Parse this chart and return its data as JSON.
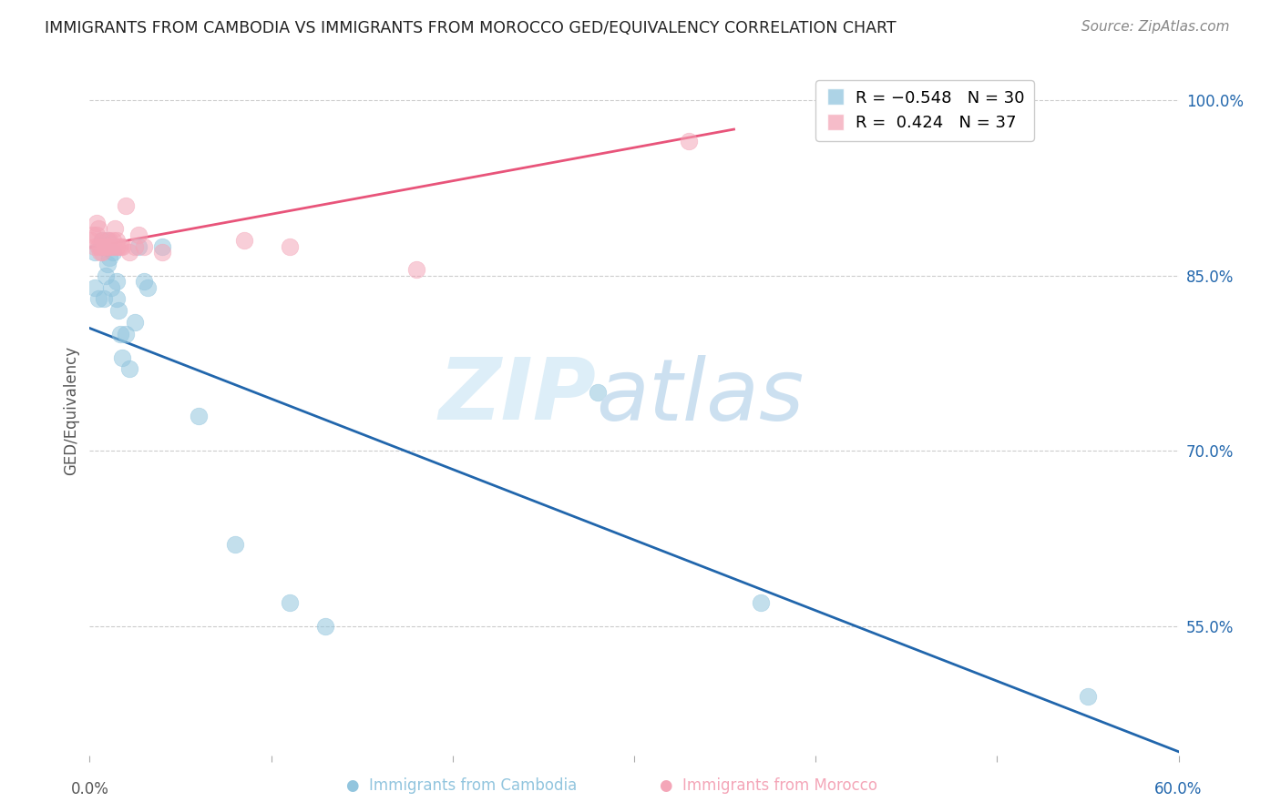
{
  "title": "IMMIGRANTS FROM CAMBODIA VS IMMIGRANTS FROM MOROCCO GED/EQUIVALENCY CORRELATION CHART",
  "source": "Source: ZipAtlas.com",
  "ylabel": "GED/Equivalency",
  "yticks": [
    1.0,
    0.85,
    0.7,
    0.55
  ],
  "ytick_labels": [
    "100.0%",
    "85.0%",
    "70.0%",
    "55.0%"
  ],
  "xlim": [
    0.0,
    0.6
  ],
  "ylim": [
    0.44,
    1.03
  ],
  "blue_color": "#92c5de",
  "pink_color": "#f4a6b8",
  "blue_line_color": "#2166ac",
  "pink_line_color": "#e8547a",
  "cambodia_x": [
    0.003,
    0.003,
    0.005,
    0.007,
    0.008,
    0.009,
    0.01,
    0.01,
    0.011,
    0.012,
    0.013,
    0.015,
    0.015,
    0.016,
    0.017,
    0.018,
    0.02,
    0.022,
    0.025,
    0.027,
    0.03,
    0.032,
    0.04,
    0.06,
    0.08,
    0.11,
    0.13,
    0.28,
    0.37,
    0.55
  ],
  "cambodia_y": [
    0.87,
    0.84,
    0.83,
    0.88,
    0.83,
    0.85,
    0.86,
    0.88,
    0.865,
    0.84,
    0.87,
    0.845,
    0.83,
    0.82,
    0.8,
    0.78,
    0.8,
    0.77,
    0.81,
    0.875,
    0.845,
    0.84,
    0.875,
    0.73,
    0.62,
    0.57,
    0.55,
    0.75,
    0.57,
    0.49
  ],
  "morocco_x": [
    0.001,
    0.002,
    0.003,
    0.004,
    0.004,
    0.005,
    0.005,
    0.006,
    0.006,
    0.007,
    0.007,
    0.008,
    0.008,
    0.009,
    0.01,
    0.01,
    0.011,
    0.011,
    0.012,
    0.013,
    0.013,
    0.014,
    0.015,
    0.015,
    0.016,
    0.017,
    0.018,
    0.02,
    0.022,
    0.025,
    0.027,
    0.03,
    0.04,
    0.085,
    0.11,
    0.18,
    0.33
  ],
  "morocco_y": [
    0.88,
    0.885,
    0.875,
    0.895,
    0.885,
    0.89,
    0.875,
    0.875,
    0.87,
    0.88,
    0.87,
    0.875,
    0.875,
    0.875,
    0.875,
    0.88,
    0.875,
    0.88,
    0.875,
    0.875,
    0.88,
    0.89,
    0.875,
    0.88,
    0.875,
    0.875,
    0.875,
    0.91,
    0.87,
    0.875,
    0.885,
    0.875,
    0.87,
    0.88,
    0.875,
    0.855,
    0.965
  ],
  "blue_line_x": [
    0.0,
    0.605
  ],
  "blue_line_y": [
    0.805,
    0.44
  ],
  "pink_line_x": [
    0.0,
    0.355
  ],
  "pink_line_y": [
    0.874,
    0.975
  ]
}
